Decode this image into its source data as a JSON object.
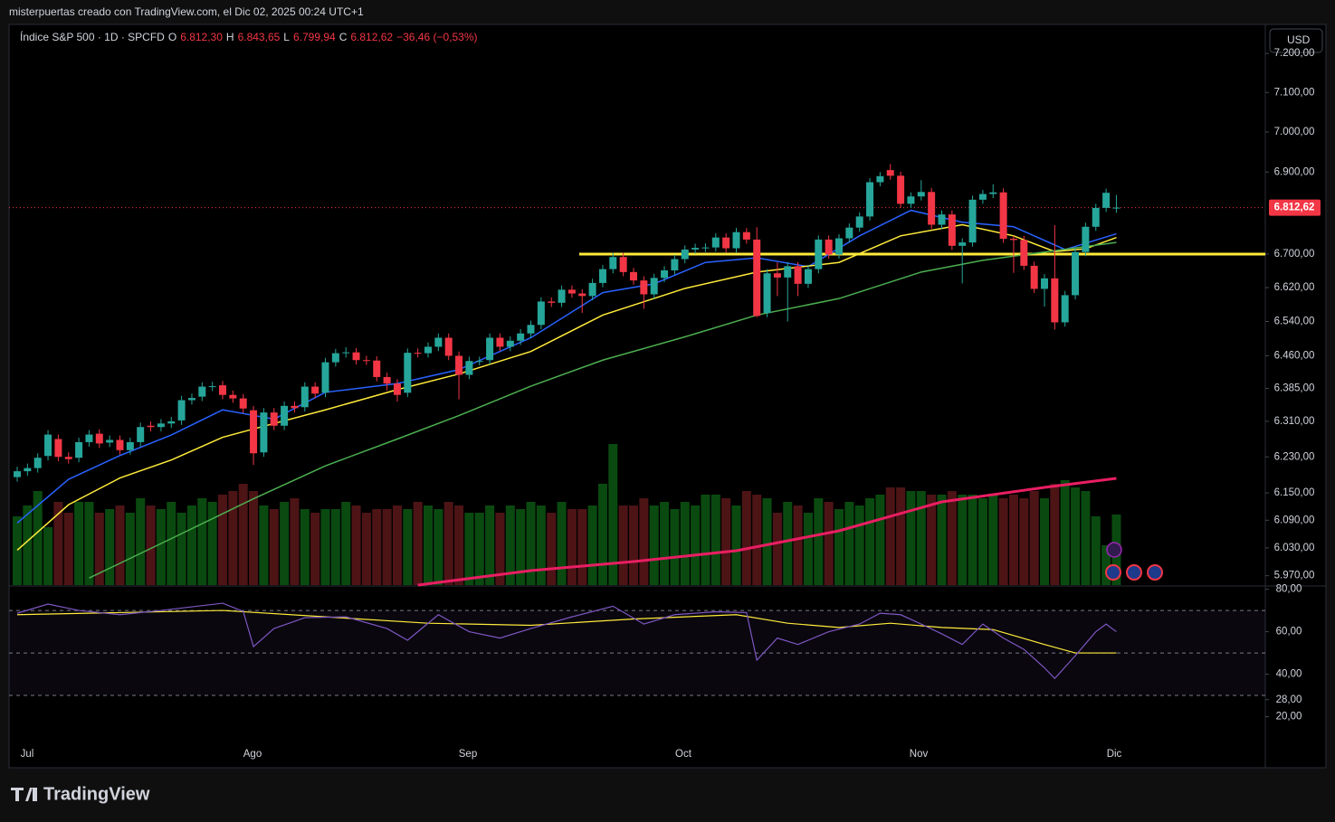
{
  "header": {
    "byline": "misterpuertas creado con TradingView.com, el Dic 02, 2025 00:24 UTC+1",
    "symbol": "Índice S&P 500 · 1D · SPCFD",
    "ohlc": [
      {
        "key": "O",
        "value": "6.812,30"
      },
      {
        "key": "H",
        "value": "6.843,65"
      },
      {
        "key": "L",
        "value": "6.799,94"
      },
      {
        "key": "C",
        "value": "6.812,62"
      }
    ],
    "change": "−36,46 (−0,53%)",
    "currency": "USD"
  },
  "footer": {
    "brand": "TradingView"
  },
  "chart_data": {
    "type": "candlestick",
    "log_scale": true,
    "months": [
      "Jul",
      "Ago",
      "Sep",
      "Oct",
      "Nov",
      "Dic"
    ],
    "ylim": [
      5950,
      7273
    ],
    "yticks": [
      {
        "value": 7200,
        "label": "7.200,00"
      },
      {
        "value": 7100,
        "label": "7.100,00"
      },
      {
        "value": 7000,
        "label": "7.000,00"
      },
      {
        "value": 6900,
        "label": "6.900,00"
      },
      {
        "value": 6700,
        "label": "6.700,00"
      },
      {
        "value": 6620,
        "label": "6.620,00"
      },
      {
        "value": 6540,
        "label": "6.540,00"
      },
      {
        "value": 6460,
        "label": "6.460,00"
      },
      {
        "value": 6385,
        "label": "6.385,00"
      },
      {
        "value": 6310,
        "label": "6.310,00"
      },
      {
        "value": 6230,
        "label": "6.230,00"
      },
      {
        "value": 6150,
        "label": "6.150,00"
      },
      {
        "value": 6090,
        "label": "6.090,00"
      },
      {
        "value": 6030,
        "label": "6.030,00"
      },
      {
        "value": 5970,
        "label": "5.970,00"
      }
    ],
    "last_price": {
      "value": 6812.62,
      "label": "6.812,62"
    },
    "level": {
      "value": 6700,
      "color": "#ffeb3b"
    },
    "up_color": "#26a69a",
    "down_color": "#f23645",
    "vol_up_color": "#0a4a10",
    "vol_down_color": "#4d1416",
    "open": [
      6185,
      6198,
      6205,
      6232,
      6270,
      6230,
      6228,
      6263,
      6282,
      6262,
      6268,
      6245,
      6263,
      6300,
      6297,
      6305,
      6312,
      6358,
      6366,
      6389,
      6392,
      6370,
      6362,
      6335,
      6240,
      6330,
      6300,
      6345,
      6342,
      6389,
      6375,
      6445,
      6466,
      6468,
      6450,
      6449,
      6411,
      6396,
      6375,
      6467,
      6466,
      6481,
      6502,
      6460,
      6416,
      6448,
      6450,
      6502,
      6481,
      6495,
      6512,
      6532,
      6587,
      6584,
      6615,
      6606,
      6600,
      6631,
      6664,
      6693,
      6657,
      6637,
      6604,
      6643,
      6661,
      6688,
      6711,
      6715,
      6716,
      6740,
      6714,
      6753,
      6735,
      6560,
      6654,
      6644,
      6671,
      6629,
      6664,
      6735,
      6699,
      6738,
      6764,
      6791,
      6875,
      6905,
      6891,
      6822,
      6840,
      6851,
      6771,
      6796,
      6720,
      6728,
      6832,
      6846,
      6850,
      6737,
      6734,
      6672,
      6617,
      6642,
      6538,
      6602,
      6705,
      6766,
      6812,
      6812.3
    ],
    "high": [
      6208,
      6215,
      6238,
      6290,
      6280,
      6240,
      6273,
      6290,
      6292,
      6278,
      6278,
      6273,
      6307,
      6310,
      6315,
      6320,
      6368,
      6373,
      6399,
      6400,
      6402,
      6380,
      6372,
      6345,
      6340,
      6340,
      6355,
      6355,
      6399,
      6399,
      6455,
      6476,
      6480,
      6478,
      6460,
      6459,
      6421,
      6406,
      6477,
      6477,
      6491,
      6512,
      6512,
      6470,
      6458,
      6458,
      6512,
      6512,
      6505,
      6522,
      6542,
      6597,
      6597,
      6625,
      6625,
      6616,
      6641,
      6674,
      6703,
      6703,
      6667,
      6647,
      6653,
      6671,
      6698,
      6721,
      6725,
      6726,
      6750,
      6750,
      6763,
      6763,
      6765,
      6664,
      6680,
      6681,
      6681,
      6674,
      6745,
      6745,
      6748,
      6774,
      6801,
      6885,
      6900,
      6920,
      6901,
      6850,
      6880,
      6861,
      6806,
      6806,
      6738,
      6842,
      6856,
      6870,
      6860,
      6744,
      6744,
      6682,
      6652,
      6770,
      6612,
      6715,
      6776,
      6822,
      6859,
      6843.65
    ],
    "low": [
      6175,
      6188,
      6195,
      6222,
      6220,
      6215,
      6218,
      6253,
      6250,
      6252,
      6235,
      6235,
      6253,
      6287,
      6287,
      6295,
      6302,
      6348,
      6356,
      6379,
      6360,
      6352,
      6329,
      6212,
      6230,
      6290,
      6290,
      6330,
      6332,
      6363,
      6365,
      6435,
      6456,
      6440,
      6439,
      6401,
      6380,
      6355,
      6365,
      6456,
      6456,
      6471,
      6450,
      6360,
      6406,
      6438,
      6440,
      6471,
      6471,
      6485,
      6502,
      6522,
      6574,
      6574,
      6596,
      6560,
      6590,
      6621,
      6654,
      6647,
      6627,
      6570,
      6594,
      6633,
      6651,
      6678,
      6701,
      6705,
      6706,
      6704,
      6704,
      6725,
      6550,
      6550,
      6600,
      6540,
      6600,
      6619,
      6654,
      6689,
      6689,
      6728,
      6754,
      6781,
      6865,
      6881,
      6812,
      6812,
      6830,
      6761,
      6761,
      6710,
      6630,
      6718,
      6822,
      6836,
      6727,
      6655,
      6662,
      6607,
      6575,
      6521,
      6528,
      6592,
      6695,
      6756,
      6802,
      6799.94
    ],
    "close": [
      6198,
      6205,
      6228,
      6280,
      6230,
      6225,
      6263,
      6280,
      6260,
      6268,
      6245,
      6263,
      6297,
      6297,
      6305,
      6310,
      6358,
      6363,
      6389,
      6390,
      6370,
      6362,
      6339,
      6238,
      6330,
      6300,
      6345,
      6340,
      6389,
      6373,
      6445,
      6466,
      6468,
      6450,
      6449,
      6411,
      6396,
      6370,
      6467,
      6466,
      6481,
      6502,
      6460,
      6416,
      6448,
      6448,
      6502,
      6481,
      6495,
      6512,
      6532,
      6587,
      6584,
      6615,
      6606,
      6600,
      6631,
      6664,
      6693,
      6657,
      6637,
      6604,
      6643,
      6661,
      6688,
      6711,
      6715,
      6716,
      6740,
      6714,
      6753,
      6735,
      6553,
      6654,
      6644,
      6671,
      6629,
      6664,
      6735,
      6699,
      6738,
      6764,
      6791,
      6875,
      6890,
      6891,
      6822,
      6840,
      6851,
      6771,
      6796,
      6720,
      6728,
      6832,
      6846,
      6850,
      6737,
      6734,
      6672,
      6617,
      6642,
      6538,
      6602,
      6705,
      6766,
      6812,
      6849,
      6812.62
    ],
    "volume_lim": [
      0,
      6
    ],
    "volume": [
      1.9,
      2.2,
      2.6,
      1.6,
      2.3,
      2.0,
      2.3,
      2.3,
      2.0,
      2.1,
      2.2,
      2.0,
      2.4,
      2.2,
      2.1,
      2.3,
      2.0,
      2.2,
      2.4,
      2.3,
      2.5,
      2.6,
      2.8,
      2.6,
      2.2,
      2.1,
      2.3,
      2.4,
      2.1,
      2.0,
      2.1,
      2.1,
      2.3,
      2.2,
      2.0,
      2.1,
      2.1,
      2.2,
      2.1,
      2.3,
      2.2,
      2.1,
      2.3,
      2.2,
      2.0,
      2.0,
      2.2,
      2.0,
      2.2,
      2.1,
      2.3,
      2.2,
      2.0,
      2.3,
      2.1,
      2.1,
      2.2,
      2.8,
      3.9,
      2.2,
      2.2,
      2.4,
      2.2,
      2.3,
      2.1,
      2.3,
      2.2,
      2.5,
      2.5,
      2.4,
      2.2,
      2.6,
      2.5,
      2.4,
      2.0,
      2.3,
      2.2,
      2.0,
      2.4,
      2.3,
      2.1,
      2.3,
      2.2,
      2.4,
      2.5,
      2.7,
      2.7,
      2.6,
      2.6,
      2.5,
      2.5,
      2.6,
      2.5,
      2.5,
      2.4,
      2.5,
      2.4,
      2.5,
      2.4,
      2.6,
      2.4,
      2.8,
      2.9,
      2.7,
      2.6,
      1.9,
      1.1,
      1.95
    ],
    "volume_ma": {
      "color": "#e91e63",
      "x": [
        39,
        50,
        60,
        70,
        80,
        90,
        100,
        107
      ],
      "values": [
        0,
        0.4,
        0.65,
        0.95,
        1.5,
        2.3,
        2.7,
        2.95
      ]
    },
    "averages": [
      {
        "color": "#2962ff",
        "x": [
          0,
          5,
          10,
          15,
          20,
          25,
          30,
          37,
          43,
          50,
          57,
          62,
          67,
          72,
          77,
          82,
          87,
          92,
          97,
          102,
          107
        ],
        "values": [
          6084,
          6180,
          6233,
          6279,
          6336,
          6315,
          6376,
          6396,
          6428,
          6502,
          6608,
          6629,
          6680,
          6691,
          6670,
          6744,
          6806,
          6777,
          6766,
          6711,
          6749
        ]
      },
      {
        "color": "#ffeb3b",
        "x": [
          0,
          5,
          10,
          15,
          20,
          25,
          30,
          37,
          43,
          50,
          57,
          65,
          72,
          80,
          86,
          92,
          97,
          101,
          104,
          107
        ],
        "values": [
          6025,
          6124,
          6183,
          6223,
          6274,
          6305,
          6336,
          6382,
          6418,
          6470,
          6555,
          6618,
          6657,
          6680,
          6744,
          6771,
          6744,
          6706,
          6713,
          6740
        ]
      },
      {
        "color": "#4caf50",
        "x": [
          7,
          15,
          23,
          30,
          37,
          43,
          50,
          57,
          65,
          72,
          80,
          88,
          94,
          100,
          107
        ],
        "values": [
          5965,
          6050,
          6137,
          6210,
          6270,
          6323,
          6390,
          6450,
          6504,
          6555,
          6594,
          6657,
          6685,
          6705,
          6728
        ]
      }
    ],
    "rsi": {
      "ylim": [
        -3.6,
        81.1
      ],
      "yticks": [
        {
          "value": 80,
          "label": "80,00"
        },
        {
          "value": 60,
          "label": "60,00"
        },
        {
          "value": 40,
          "label": "40,00"
        },
        {
          "value": 28,
          "label": "28,00"
        },
        {
          "value": 20,
          "label": "20,00"
        }
      ],
      "bands": [
        30,
        50,
        70
      ],
      "color": "#7e57c2",
      "ma_color": "#ffeb3b",
      "x": [
        0,
        3,
        6,
        10,
        14,
        20,
        22,
        23,
        25,
        28,
        32,
        36,
        38,
        41,
        44,
        47,
        50,
        54,
        58,
        61,
        64,
        68,
        71,
        72,
        74,
        76,
        79,
        82,
        84,
        86,
        88,
        90,
        92,
        94,
        96,
        98,
        100,
        101,
        103,
        105,
        106,
        107
      ],
      "values": [
        68.7,
        73,
        70,
        68,
        70,
        73.4,
        69.6,
        53,
        61.5,
        66.6,
        67,
        61.5,
        56,
        68,
        60,
        57,
        61.5,
        67,
        72,
        63.6,
        68,
        69.4,
        69,
        46.6,
        57,
        54,
        60,
        63.6,
        68.7,
        68,
        63.6,
        59,
        54,
        63.6,
        57,
        51.7,
        43,
        38,
        48.7,
        60,
        63.6,
        60
      ],
      "ma_x": [
        0,
        20,
        30,
        40,
        50,
        60,
        70,
        75,
        80,
        85,
        90,
        95,
        100,
        103,
        107
      ],
      "ma_values": [
        68,
        70,
        67,
        64,
        63,
        66,
        68,
        64,
        62,
        64,
        62,
        61,
        54,
        50,
        50
      ]
    }
  }
}
